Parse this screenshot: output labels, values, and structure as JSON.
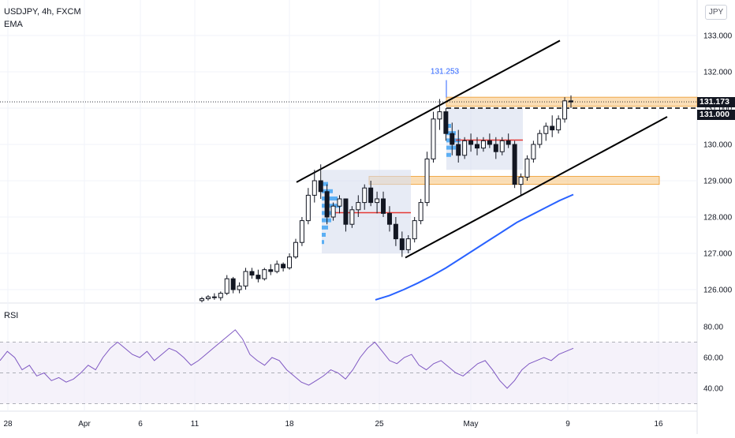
{
  "header": {
    "symbol_line": "USDJPY, 4h, FXCM",
    "indicator": "EMA"
  },
  "currency_button": "JPY",
  "rsi_label": "RSI",
  "price_tags": {
    "current": "131.173",
    "level": "131.000"
  },
  "colors": {
    "up": "#131722",
    "down": "#131722",
    "ema": "#2962ff",
    "rsi": "#7e57c2",
    "zone": "#f7c27a",
    "poc": "#e53935",
    "volume": "#2196f3",
    "volbox": "#d7deef",
    "channel": "#000000"
  },
  "chart_data": [
    {
      "type": "candlestick",
      "title": "USDJPY, 4h, FXCM",
      "ylim": [
        125.6,
        133.3
      ],
      "y_ticks": [
        "126.000",
        "127.000",
        "128.000",
        "129.000",
        "130.000",
        "131.000",
        "132.000",
        "133.000"
      ],
      "x_ticks": [
        "28",
        "Apr",
        "6",
        "11",
        "18",
        "25",
        "May",
        "9",
        "16"
      ],
      "annotation": "131.253",
      "current_price": 131.173,
      "support_resistance_zones": [
        {
          "low": 131.05,
          "high": 131.3
        },
        {
          "low": 128.9,
          "high": 129.12
        }
      ],
      "dashed_level": 131.0,
      "candles": [
        [
          125.7,
          125.8,
          125.65,
          125.75
        ],
        [
          125.75,
          125.85,
          125.7,
          125.8
        ],
        [
          125.8,
          125.9,
          125.72,
          125.78
        ],
        [
          125.78,
          125.95,
          125.7,
          125.9
        ],
        [
          125.9,
          126.4,
          125.85,
          126.3
        ],
        [
          126.3,
          126.35,
          125.9,
          126.0
        ],
        [
          126.0,
          126.2,
          125.9,
          126.1
        ],
        [
          126.1,
          126.6,
          126.0,
          126.5
        ],
        [
          126.5,
          126.6,
          126.3,
          126.4
        ],
        [
          126.4,
          126.55,
          126.2,
          126.3
        ],
        [
          126.3,
          126.6,
          126.25,
          126.55
        ],
        [
          126.55,
          126.7,
          126.4,
          126.5
        ],
        [
          126.5,
          126.8,
          126.45,
          126.7
        ],
        [
          126.7,
          126.75,
          126.5,
          126.6
        ],
        [
          126.6,
          127.0,
          126.55,
          126.9
        ],
        [
          126.9,
          127.4,
          126.85,
          127.3
        ],
        [
          127.3,
          128.0,
          127.2,
          127.9
        ],
        [
          127.9,
          128.8,
          127.8,
          128.6
        ],
        [
          128.6,
          129.3,
          128.4,
          129.0
        ],
        [
          129.0,
          129.45,
          128.5,
          128.7
        ],
        [
          128.7,
          128.9,
          127.8,
          128.0
        ],
        [
          128.0,
          128.4,
          127.9,
          128.3
        ],
        [
          128.3,
          128.6,
          128.1,
          128.5
        ],
        [
          128.5,
          128.5,
          127.6,
          127.8
        ],
        [
          127.8,
          128.3,
          127.7,
          128.2
        ],
        [
          128.2,
          128.6,
          128.0,
          128.4
        ],
        [
          128.4,
          128.9,
          128.2,
          128.8
        ],
        [
          128.8,
          129.0,
          128.3,
          128.4
        ],
        [
          128.4,
          128.7,
          128.1,
          128.5
        ],
        [
          128.5,
          128.7,
          128.0,
          128.1
        ],
        [
          128.1,
          128.3,
          127.6,
          127.8
        ],
        [
          127.8,
          128.0,
          127.2,
          127.4
        ],
        [
          127.4,
          127.6,
          126.9,
          127.1
        ],
        [
          127.1,
          127.5,
          127.0,
          127.4
        ],
        [
          127.4,
          128.0,
          127.3,
          127.9
        ],
        [
          127.9,
          128.5,
          127.8,
          128.4
        ],
        [
          128.4,
          129.8,
          128.3,
          129.6
        ],
        [
          129.6,
          130.9,
          129.5,
          130.7
        ],
        [
          130.7,
          131.25,
          130.4,
          130.9
        ],
        [
          130.9,
          131.0,
          130.1,
          130.3
        ],
        [
          130.3,
          130.6,
          129.7,
          130.0
        ],
        [
          130.0,
          130.4,
          129.5,
          129.7
        ],
        [
          129.7,
          130.2,
          129.6,
          130.1
        ],
        [
          130.1,
          130.3,
          129.8,
          130.0
        ],
        [
          130.0,
          130.2,
          129.7,
          129.9
        ],
        [
          129.9,
          130.2,
          129.8,
          130.1
        ],
        [
          130.1,
          130.3,
          129.9,
          130.0
        ],
        [
          130.0,
          130.2,
          129.6,
          129.8
        ],
        [
          129.8,
          130.2,
          129.7,
          130.1
        ],
        [
          130.1,
          130.3,
          129.9,
          130.0
        ],
        [
          130.0,
          130.1,
          128.8,
          128.9
        ],
        [
          128.9,
          129.2,
          128.6,
          129.1
        ],
        [
          129.1,
          129.7,
          129.0,
          129.6
        ],
        [
          129.6,
          130.1,
          129.5,
          130.0
        ],
        [
          130.0,
          130.4,
          129.9,
          130.3
        ],
        [
          130.3,
          130.6,
          130.1,
          130.5
        ],
        [
          130.5,
          130.8,
          130.2,
          130.4
        ],
        [
          130.4,
          130.8,
          130.3,
          130.7
        ],
        [
          130.7,
          131.3,
          130.6,
          131.2
        ],
        [
          131.2,
          131.35,
          131.0,
          131.17
        ]
      ],
      "ema": [
        125.72,
        125.84,
        126.0,
        126.18,
        126.38,
        126.6,
        126.85,
        127.1,
        127.35,
        127.6,
        127.85,
        128.05,
        128.25,
        128.45,
        128.62
      ]
    },
    {
      "type": "line",
      "title": "RSI",
      "ylim": [
        32,
        90
      ],
      "y_ticks": [
        "40.00",
        "60.00",
        "80.00"
      ],
      "band": [
        30,
        70
      ],
      "series": [
        {
          "values": [
            58,
            64,
            60,
            52,
            55,
            48,
            50,
            45,
            47,
            44,
            46,
            50,
            55,
            52,
            60,
            66,
            70,
            66,
            62,
            60,
            64,
            58,
            62,
            66,
            64,
            60,
            55,
            58,
            62,
            66,
            70,
            74,
            78,
            72,
            62,
            58,
            55,
            60,
            58,
            52,
            48,
            44,
            42,
            45,
            48,
            52,
            50,
            46,
            52,
            60,
            66,
            70,
            64,
            58,
            56,
            60,
            62,
            55,
            52,
            56,
            58,
            54,
            50,
            48,
            52,
            56,
            58,
            52,
            45,
            40,
            45,
            52,
            56,
            58,
            60,
            58,
            62,
            64,
            66
          ]
        }
      ]
    }
  ]
}
